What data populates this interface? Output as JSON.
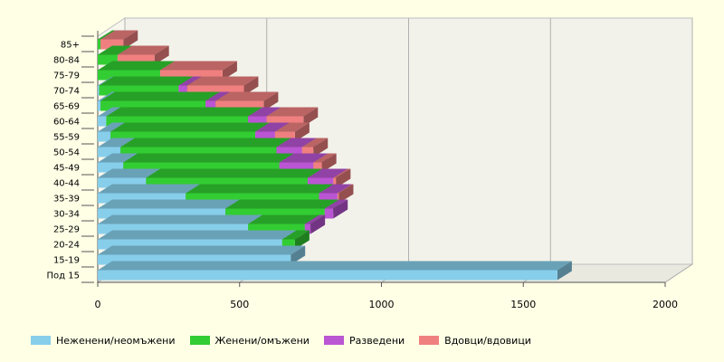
{
  "chart_data": {
    "type": "bar",
    "orientation": "horizontal",
    "stacked": true,
    "three_d": true,
    "title": "",
    "xlabel": "",
    "ylabel": "",
    "xlim": [
      0,
      2000
    ],
    "x_ticks": [
      "0",
      "500",
      "1000",
      "1500",
      "2000"
    ],
    "grid": true,
    "legend_position": "bottom",
    "categories": [
      "85+",
      "80-84",
      "75-79",
      "70-74",
      "65-69",
      "60-64",
      "55-59",
      "50-54",
      "45-49",
      "40-44",
      "35-39",
      "30-34",
      "25-29",
      "20-24",
      "15-19",
      "Под 15"
    ],
    "series": [
      {
        "name": "Неженени/неомъжени",
        "color": "#87ceeb",
        "values": [
          0,
          0,
          0,
          5,
          10,
          30,
          45,
          80,
          90,
          170,
          310,
          450,
          530,
          650,
          680,
          1620
        ]
      },
      {
        "name": "Женени/омъжени",
        "color": "#32cd32",
        "values": [
          10,
          70,
          220,
          280,
          370,
          500,
          510,
          550,
          550,
          570,
          470,
          350,
          200,
          45,
          0,
          0
        ]
      },
      {
        "name": "Разведени",
        "color": "#ba55d3",
        "values": [
          0,
          0,
          0,
          30,
          35,
          65,
          70,
          90,
          120,
          90,
          65,
          30,
          20,
          0,
          0,
          0
        ]
      },
      {
        "name": "Вдовци/вдовици",
        "color": "#f08080",
        "values": [
          80,
          130,
          220,
          200,
          170,
          130,
          70,
          40,
          30,
          10,
          5,
          0,
          0,
          0,
          0,
          0
        ]
      }
    ]
  }
}
